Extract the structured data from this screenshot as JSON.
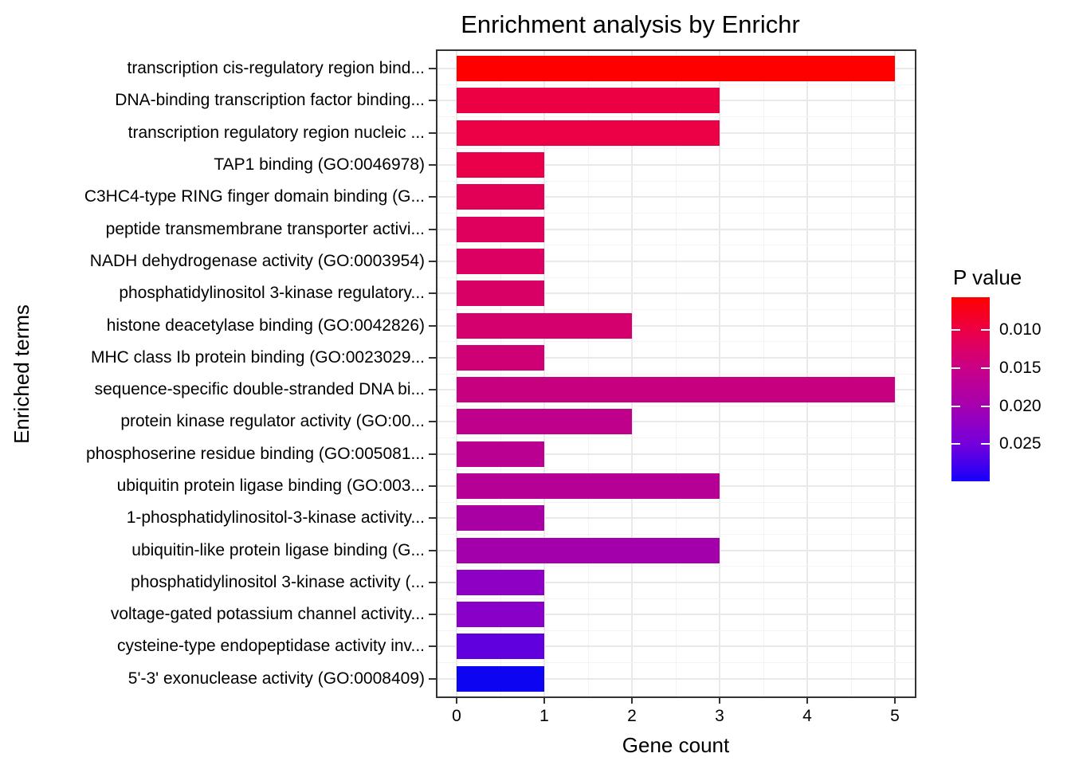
{
  "chart_data": {
    "type": "bar",
    "orientation": "horizontal",
    "title": "Enrichment analysis by Enrichr",
    "xlabel": "Gene count",
    "ylabel": "Enriched terms",
    "xlim": [
      0,
      5
    ],
    "xticks": [
      0,
      1,
      2,
      3,
      4,
      5
    ],
    "grid": "on",
    "categories": [
      "transcription cis-regulatory region bind...",
      "DNA-binding transcription factor binding...",
      "transcription regulatory region nucleic ...",
      "TAP1 binding (GO:0046978)",
      "C3HC4-type RING finger domain binding (G...",
      "peptide transmembrane transporter activi...",
      "NADH dehydrogenase activity (GO:0003954)",
      "phosphatidylinositol 3-kinase regulatory...",
      "histone deacetylase binding (GO:0042826)",
      "MHC class Ib protein binding (GO:0023029...",
      "sequence-specific double-stranded DNA bi...",
      "protein kinase regulator activity (GO:00...",
      "phosphoserine residue binding (GO:005081...",
      "ubiquitin protein ligase binding (GO:003...",
      "1-phosphatidylinositol-3-kinase activity...",
      "ubiquitin-like protein ligase binding (G...",
      "phosphatidylinositol 3-kinase activity (...",
      "voltage-gated potassium channel activity...",
      "cysteine-type endopeptidase activity inv...",
      "5'-3' exonuclease activity (GO:0008409)"
    ],
    "values": [
      5,
      3,
      3,
      1,
      1,
      1,
      1,
      1,
      2,
      1,
      5,
      2,
      1,
      3,
      1,
      3,
      1,
      1,
      1,
      1
    ],
    "bar_colors": [
      "#FF0000",
      "#ED0043",
      "#EC0046",
      "#EA004A",
      "#E10056",
      "#DE005C",
      "#DB0061",
      "#D80065",
      "#D3006D",
      "#CE0074",
      "#C7007F",
      "#BF008A",
      "#BA0090",
      "#B60095",
      "#A900A4",
      "#A300AB",
      "#8E00C4",
      "#8900C9",
      "#6100DF",
      "#0D05F2"
    ],
    "legend": {
      "title": "P value",
      "position": "right",
      "tick_labels": [
        "0.010",
        "0.015",
        "0.020",
        "0.025"
      ],
      "tick_values": [
        0.01,
        0.015,
        0.02,
        0.025
      ],
      "range": [
        0.0057,
        0.0299
      ],
      "gradient_stops": [
        {
          "color": "#FF0000",
          "pos": 0
        },
        {
          "color": "#EC0045",
          "pos": 0.18
        },
        {
          "color": "#C90087",
          "pos": 0.385
        },
        {
          "color": "#A600AF",
          "pos": 0.59
        },
        {
          "color": "#7300DC",
          "pos": 0.8
        },
        {
          "color": "#3A00EF",
          "pos": 0.93
        },
        {
          "color": "#1400FA",
          "pos": 1
        }
      ]
    },
    "colors": {
      "panel_border": "#333333",
      "grid_major": "#e9e9e9",
      "grid_minor": "#f3f3f3",
      "tick": "#333333",
      "text": "#000000",
      "background": "#ffffff"
    }
  }
}
